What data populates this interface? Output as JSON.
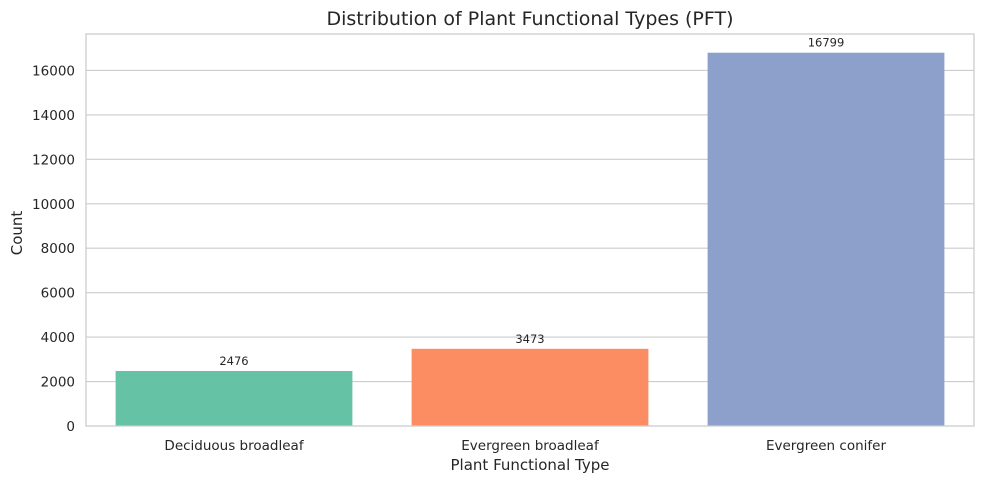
{
  "chart_data": {
    "type": "bar",
    "title": "Distribution of Plant Functional Types (PFT)",
    "xlabel": "Plant Functional Type",
    "ylabel": "Count",
    "categories": [
      "Deciduous broadleaf",
      "Evergreen broadleaf",
      "Evergreen conifer"
    ],
    "values": [
      2476,
      3473,
      16799
    ],
    "data_labels": [
      "2476",
      "3473",
      "16799"
    ],
    "colors": [
      "#66c2a5",
      "#fc8d62",
      "#8da0cb"
    ],
    "ylim": [
      0,
      17640
    ],
    "yticks": [
      0,
      2000,
      4000,
      6000,
      8000,
      10000,
      12000,
      14000,
      16000
    ],
    "ytick_labels": [
      "0",
      "2000",
      "4000",
      "6000",
      "8000",
      "10000",
      "12000",
      "14000",
      "16000"
    ],
    "grid": "horizontal",
    "legend": "none"
  }
}
